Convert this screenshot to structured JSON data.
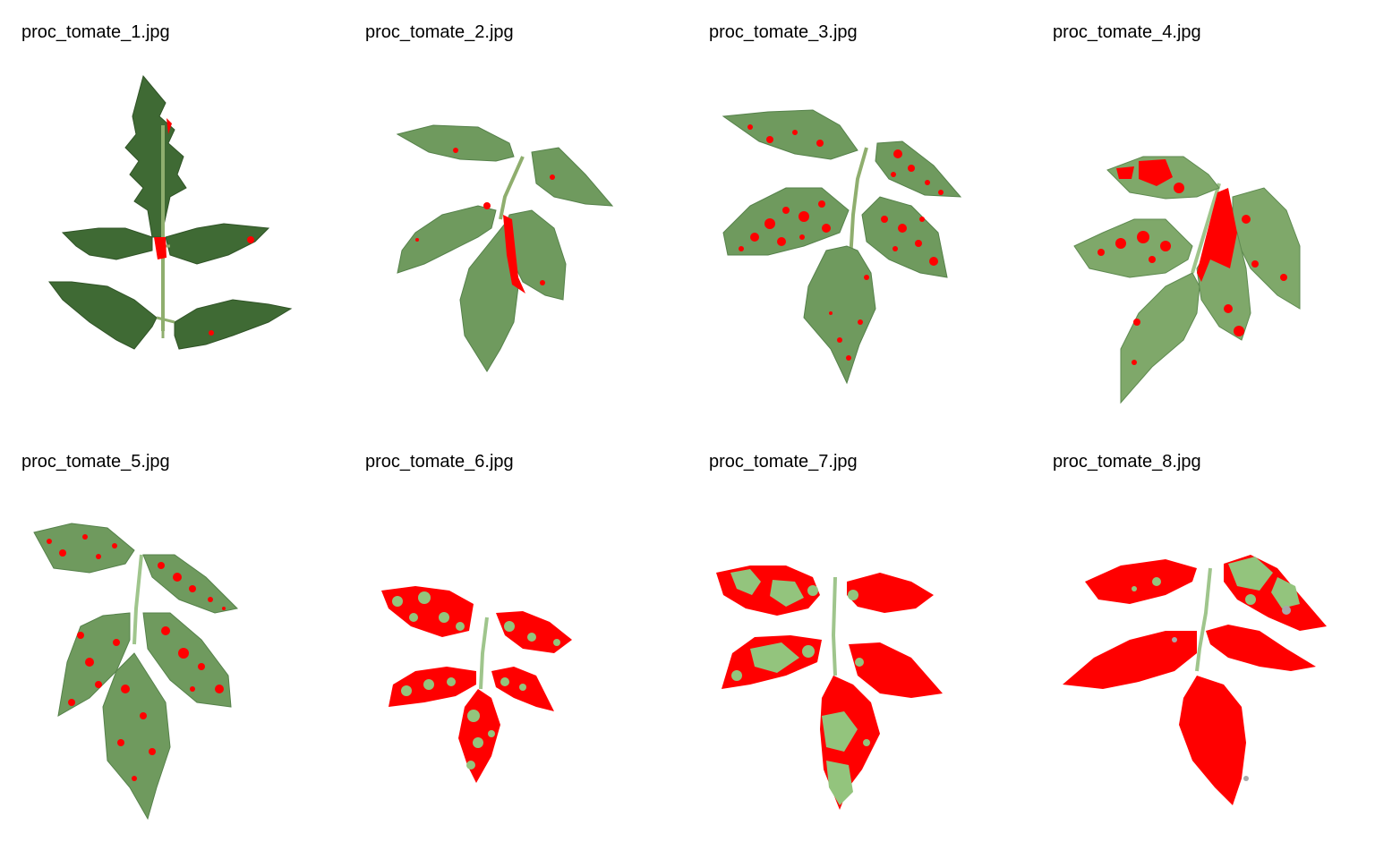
{
  "colors": {
    "background": "#ffffff",
    "lesion": "#ff0000",
    "leaf_dark": "#3f6a34",
    "leaf_mid": "#6f9a5e",
    "leaf_light": "#93c47d",
    "stem": "#9fc58c"
  },
  "panels": [
    {
      "filename": "proc_tomate_1.jpg",
      "lesion_level": 0.03
    },
    {
      "filename": "proc_tomate_2.jpg",
      "lesion_level": 0.04
    },
    {
      "filename": "proc_tomate_3.jpg",
      "lesion_level": 0.12
    },
    {
      "filename": "proc_tomate_4.jpg",
      "lesion_level": 0.2
    },
    {
      "filename": "proc_tomate_5.jpg",
      "lesion_level": 0.18
    },
    {
      "filename": "proc_tomate_6.jpg",
      "lesion_level": 0.55
    },
    {
      "filename": "proc_tomate_7.jpg",
      "lesion_level": 0.6
    },
    {
      "filename": "proc_tomate_8.jpg",
      "lesion_level": 0.85
    }
  ]
}
